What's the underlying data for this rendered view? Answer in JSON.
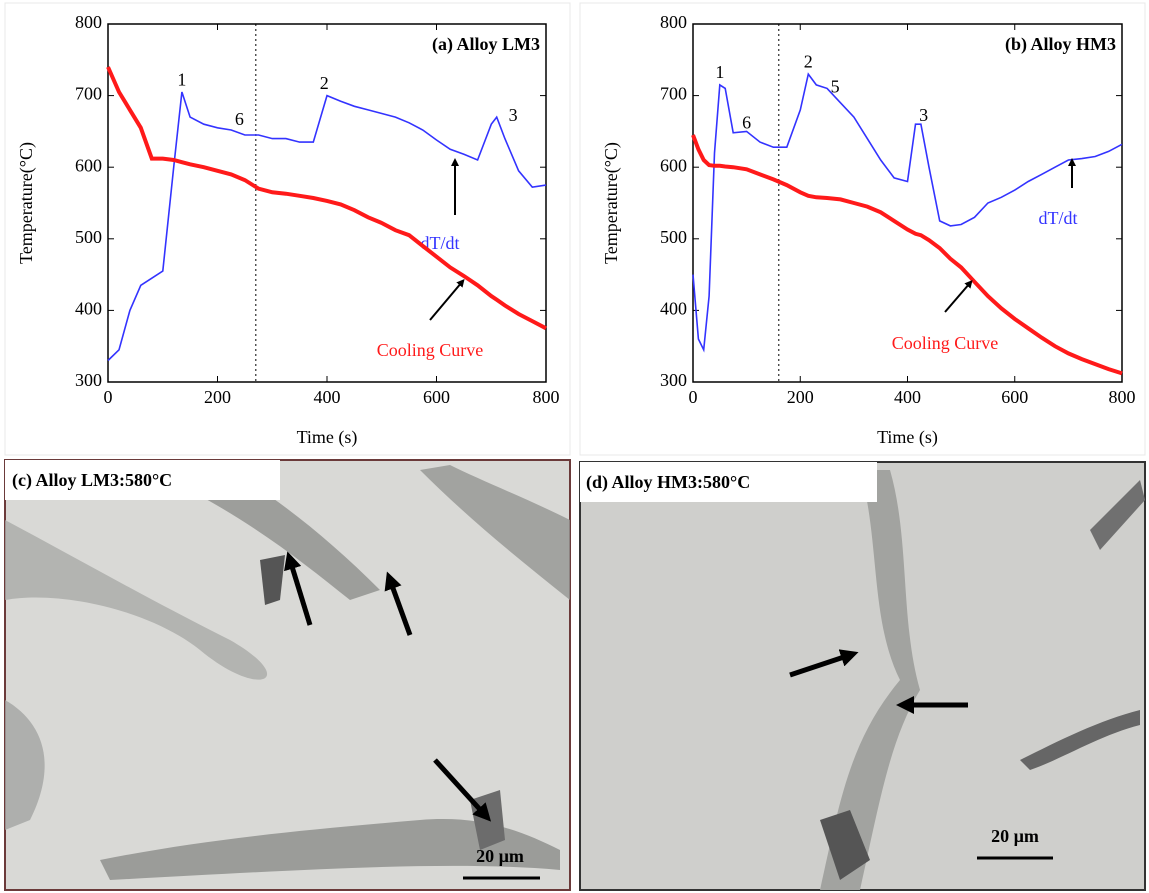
{
  "chart_data": [
    {
      "type": "line",
      "title": "(a) Alloy LM3",
      "xlabel": "Time (s)",
      "ylabel": "Temperature(°C)",
      "xlim": [
        0,
        800
      ],
      "ylim": [
        300,
        800
      ],
      "xticks": [
        0,
        200,
        400,
        600,
        800
      ],
      "yticks": [
        300,
        400,
        500,
        600,
        700,
        800
      ],
      "vline": 270,
      "x": [
        0,
        20,
        40,
        60,
        80,
        100,
        120,
        135,
        150,
        175,
        200,
        225,
        250,
        275,
        300,
        325,
        350,
        375,
        400,
        425,
        450,
        475,
        500,
        525,
        550,
        575,
        600,
        625,
        650,
        675,
        700,
        710,
        725,
        750,
        775,
        800
      ],
      "series": [
        {
          "name": "dT/dt",
          "color": "#3333ff",
          "values": [
            330,
            345,
            400,
            435,
            445,
            455,
            600,
            705,
            670,
            660,
            655,
            652,
            645,
            645,
            640,
            640,
            635,
            635,
            700,
            692,
            685,
            680,
            675,
            670,
            662,
            652,
            638,
            625,
            618,
            610,
            660,
            670,
            640,
            595,
            572,
            575
          ]
        },
        {
          "name": "Cooling Curve",
          "color": "#ff1a1a",
          "values": [
            740,
            705,
            680,
            655,
            612,
            612,
            610,
            607,
            604,
            600,
            595,
            590,
            582,
            570,
            565,
            563,
            560,
            557,
            553,
            548,
            540,
            530,
            522,
            512,
            505,
            490,
            475,
            460,
            448,
            435,
            420,
            415,
            407,
            395,
            385,
            375
          ]
        }
      ],
      "annotations": [
        {
          "text": "1",
          "x": 135,
          "y": 720
        },
        {
          "text": "6",
          "x": 240,
          "y": 665
        },
        {
          "text": "2",
          "x": 395,
          "y": 715
        },
        {
          "text": "3",
          "x": 740,
          "y": 670
        }
      ]
    },
    {
      "type": "line",
      "title": "(b) Alloy HM3",
      "xlabel": "Time (s)",
      "ylabel": "Temperature(°C)",
      "xlim": [
        0,
        800
      ],
      "ylim": [
        300,
        800
      ],
      "xticks": [
        0,
        200,
        400,
        600,
        800
      ],
      "yticks": [
        300,
        400,
        500,
        600,
        700,
        800
      ],
      "vline": 160,
      "x": [
        0,
        10,
        20,
        30,
        40,
        50,
        60,
        75,
        100,
        125,
        150,
        175,
        200,
        215,
        230,
        250,
        275,
        300,
        325,
        350,
        375,
        400,
        415,
        425,
        440,
        460,
        480,
        500,
        525,
        550,
        575,
        600,
        625,
        650,
        675,
        700,
        725,
        750,
        775,
        800
      ],
      "series": [
        {
          "name": "dT/dt",
          "color": "#3333ff",
          "values": [
            450,
            360,
            345,
            420,
            620,
            715,
            710,
            648,
            650,
            635,
            628,
            628,
            680,
            730,
            715,
            710,
            690,
            670,
            640,
            610,
            585,
            580,
            660,
            660,
            600,
            525,
            518,
            520,
            530,
            550,
            558,
            568,
            580,
            590,
            600,
            610,
            612,
            615,
            622,
            632
          ]
        },
        {
          "name": "Cooling Curve",
          "color": "#ff1a1a",
          "values": [
            645,
            625,
            610,
            603,
            602,
            602,
            601,
            600,
            597,
            590,
            583,
            575,
            565,
            560,
            558,
            557,
            555,
            550,
            545,
            537,
            525,
            513,
            507,
            505,
            498,
            487,
            472,
            460,
            440,
            420,
            403,
            388,
            375,
            362,
            350,
            340,
            332,
            325,
            318,
            312
          ]
        }
      ],
      "annotations": [
        {
          "text": "1",
          "x": 50,
          "y": 730
        },
        {
          "text": "6",
          "x": 100,
          "y": 660
        },
        {
          "text": "2",
          "x": 215,
          "y": 745
        },
        {
          "text": "5",
          "x": 265,
          "y": 710
        },
        {
          "text": "3",
          "x": 430,
          "y": 670
        }
      ]
    }
  ],
  "images": [
    {
      "label": "(c) Alloy LM3:580°C",
      "scale_bar": "20 µm"
    },
    {
      "label": "(d) Alloy HM3:580°C",
      "scale_bar": "20 µm"
    }
  ]
}
